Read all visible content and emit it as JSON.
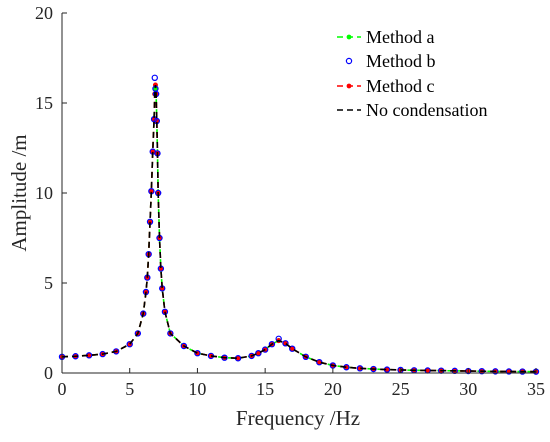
{
  "chart_data": {
    "type": "line",
    "title": "",
    "xlabel": "Frequency /Hz",
    "ylabel": "Amplitude /m",
    "xlim": [
      0,
      35
    ],
    "ylim": [
      0,
      20
    ],
    "xticks": [
      "0",
      "5",
      "10",
      "15",
      "20",
      "25",
      "30",
      "35"
    ],
    "yticks": [
      "0",
      "5",
      "10",
      "15",
      "20"
    ],
    "grid": false,
    "legend_position": "top-right",
    "series": [
      {
        "name": "Method a",
        "color": "#00ff00",
        "style": "dashed",
        "marker": "dot",
        "x": [
          0,
          1,
          2,
          3,
          4,
          5,
          5.6,
          6.0,
          6.2,
          6.3,
          6.4,
          6.5,
          6.6,
          6.7,
          6.8,
          6.85,
          6.9,
          6.95,
          7.0,
          7.05,
          7.1,
          7.2,
          7.3,
          7.4,
          7.6,
          8.0,
          9,
          10,
          11,
          12,
          13,
          14,
          14.5,
          15,
          15.5,
          16,
          16.5,
          17,
          18,
          19,
          20,
          21,
          22,
          23,
          24,
          25,
          26,
          27,
          28,
          29,
          30,
          31,
          32,
          33,
          34,
          35
        ],
        "values": [
          0.9,
          0.93,
          0.98,
          1.05,
          1.2,
          1.6,
          2.2,
          3.3,
          4.5,
          5.3,
          6.6,
          8.4,
          10.1,
          12.3,
          14.1,
          15.5,
          15.8,
          15.5,
          14.0,
          12.2,
          10.0,
          7.5,
          5.8,
          4.7,
          3.4,
          2.2,
          1.5,
          1.1,
          0.95,
          0.85,
          0.82,
          0.95,
          1.1,
          1.3,
          1.6,
          1.8,
          1.65,
          1.35,
          0.9,
          0.6,
          0.42,
          0.32,
          0.26,
          0.22,
          0.19,
          0.17,
          0.15,
          0.14,
          0.13,
          0.12,
          0.11,
          0.1,
          0.09,
          0.085,
          0.08,
          0.075
        ]
      },
      {
        "name": "Method b",
        "color": "#0000ff",
        "style": "none",
        "marker": "circle",
        "x": [
          0,
          1,
          2,
          3,
          4,
          5,
          5.6,
          6.0,
          6.2,
          6.3,
          6.4,
          6.5,
          6.6,
          6.7,
          6.8,
          6.85,
          6.9,
          6.95,
          7.0,
          7.05,
          7.1,
          7.2,
          7.3,
          7.4,
          7.6,
          8.0,
          9,
          10,
          11,
          12,
          13,
          14,
          14.5,
          15,
          15.5,
          16,
          16.5,
          17,
          18,
          19,
          20,
          21,
          22,
          23,
          24,
          25,
          26,
          27,
          28,
          29,
          30,
          31,
          32,
          33,
          34,
          35
        ],
        "values": [
          0.9,
          0.93,
          0.98,
          1.05,
          1.2,
          1.6,
          2.2,
          3.3,
          4.5,
          5.3,
          6.6,
          8.4,
          10.1,
          12.3,
          14.1,
          16.4,
          15.8,
          15.5,
          14.0,
          12.2,
          10.0,
          7.5,
          5.8,
          4.7,
          3.4,
          2.2,
          1.5,
          1.1,
          0.95,
          0.85,
          0.82,
          0.95,
          1.1,
          1.3,
          1.6,
          1.9,
          1.65,
          1.35,
          0.9,
          0.6,
          0.42,
          0.32,
          0.26,
          0.22,
          0.19,
          0.17,
          0.15,
          0.14,
          0.13,
          0.12,
          0.11,
          0.1,
          0.09,
          0.085,
          0.08,
          0.075
        ]
      },
      {
        "name": "Method c",
        "color": "#ff0000",
        "style": "dashed",
        "marker": "dot",
        "x": [
          0,
          1,
          2,
          3,
          4,
          5,
          5.6,
          6.0,
          6.2,
          6.3,
          6.4,
          6.5,
          6.6,
          6.7,
          6.8,
          6.85,
          6.9,
          6.95,
          7.0,
          7.05,
          7.1,
          7.2,
          7.3,
          7.4,
          7.6,
          8.0,
          9,
          10,
          11,
          12,
          13,
          14,
          14.5,
          15,
          15.5,
          16,
          16.5,
          17,
          18,
          19,
          20,
          21,
          22,
          23,
          24,
          25,
          26,
          27,
          28,
          29,
          30,
          31,
          32,
          33,
          34,
          35
        ],
        "values": [
          0.9,
          0.93,
          0.98,
          1.05,
          1.2,
          1.6,
          2.2,
          3.3,
          4.5,
          5.3,
          6.6,
          8.4,
          10.1,
          12.3,
          14.1,
          15.5,
          16.0,
          15.5,
          14.0,
          12.2,
          10.0,
          7.5,
          5.8,
          4.7,
          3.4,
          2.2,
          1.5,
          1.1,
          0.95,
          0.85,
          0.82,
          0.95,
          1.1,
          1.3,
          1.6,
          1.8,
          1.65,
          1.35,
          0.9,
          0.6,
          0.42,
          0.32,
          0.26,
          0.22,
          0.19,
          0.17,
          0.15,
          0.14,
          0.13,
          0.12,
          0.11,
          0.1,
          0.09,
          0.085,
          0.08,
          0.075
        ]
      },
      {
        "name": "No condensation",
        "color": "#000000",
        "style": "dashed",
        "marker": "none",
        "x": [
          0,
          1,
          2,
          3,
          4,
          5,
          5.6,
          6.0,
          6.2,
          6.3,
          6.4,
          6.5,
          6.6,
          6.7,
          6.8,
          6.85,
          6.9,
          6.95,
          7.0,
          7.05,
          7.1,
          7.2,
          7.3,
          7.4,
          7.6,
          8.0,
          9,
          10,
          11,
          12,
          13,
          14,
          14.5,
          15,
          15.5,
          16,
          16.5,
          17,
          18,
          19,
          20,
          21,
          22,
          23,
          24,
          25,
          26,
          27,
          28,
          29,
          30,
          31,
          32,
          33,
          34,
          35
        ],
        "values": [
          0.9,
          0.93,
          0.98,
          1.05,
          1.2,
          1.6,
          2.2,
          3.3,
          4.5,
          5.3,
          6.6,
          8.4,
          10.1,
          12.3,
          14.1,
          15.5,
          16.0,
          15.5,
          14.0,
          12.2,
          10.0,
          7.5,
          5.8,
          4.7,
          3.4,
          2.2,
          1.5,
          1.1,
          0.95,
          0.85,
          0.82,
          0.95,
          1.1,
          1.3,
          1.6,
          1.8,
          1.65,
          1.35,
          0.9,
          0.6,
          0.42,
          0.32,
          0.26,
          0.22,
          0.19,
          0.17,
          0.15,
          0.14,
          0.13,
          0.12,
          0.11,
          0.1,
          0.09,
          0.085,
          0.08,
          0.075
        ]
      }
    ]
  }
}
